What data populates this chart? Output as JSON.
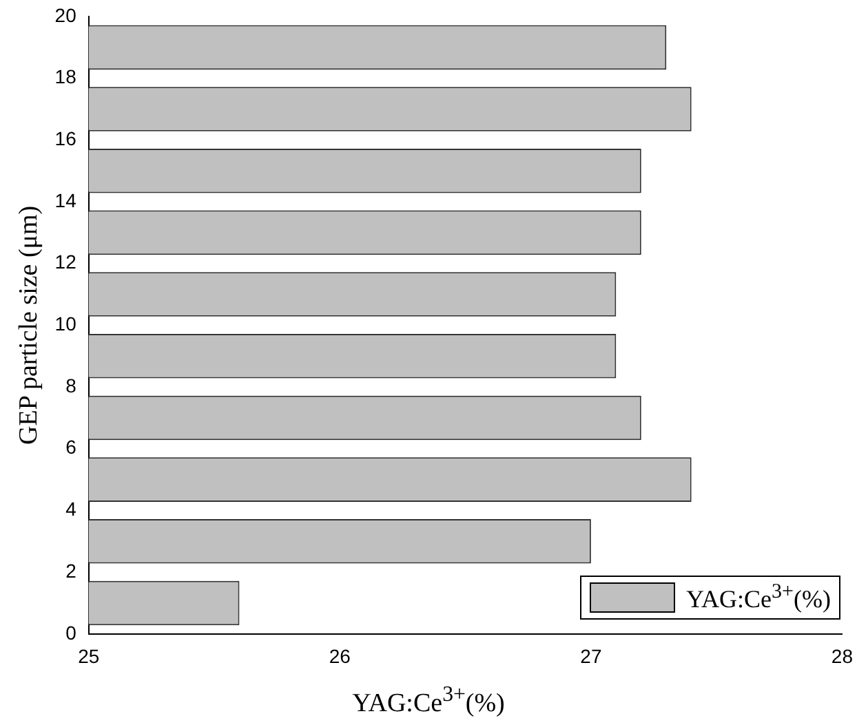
{
  "chart_data": {
    "type": "bar",
    "orientation": "horizontal",
    "xlabel": "YAG:Ce$^{3+}$(%)",
    "ylabel": "GEP particle size (μm)",
    "x": [
      1,
      3,
      5,
      7,
      9,
      11,
      13,
      15,
      17,
      19
    ],
    "series": [
      {
        "name": "YAG:Ce$^{3+}$(%)",
        "color": "#c0c0c0",
        "values": [
          25.6,
          27.0,
          27.4,
          27.2,
          27.1,
          27.1,
          27.2,
          27.2,
          27.4,
          27.3
        ]
      }
    ],
    "xlim": [
      25,
      28
    ],
    "xticks": [
      25,
      26,
      27,
      28
    ],
    "ylim": [
      0,
      20
    ],
    "yticks": [
      0,
      2,
      4,
      6,
      8,
      10,
      12,
      14,
      16,
      18,
      20
    ],
    "grid": false,
    "legend": "bottom right"
  }
}
